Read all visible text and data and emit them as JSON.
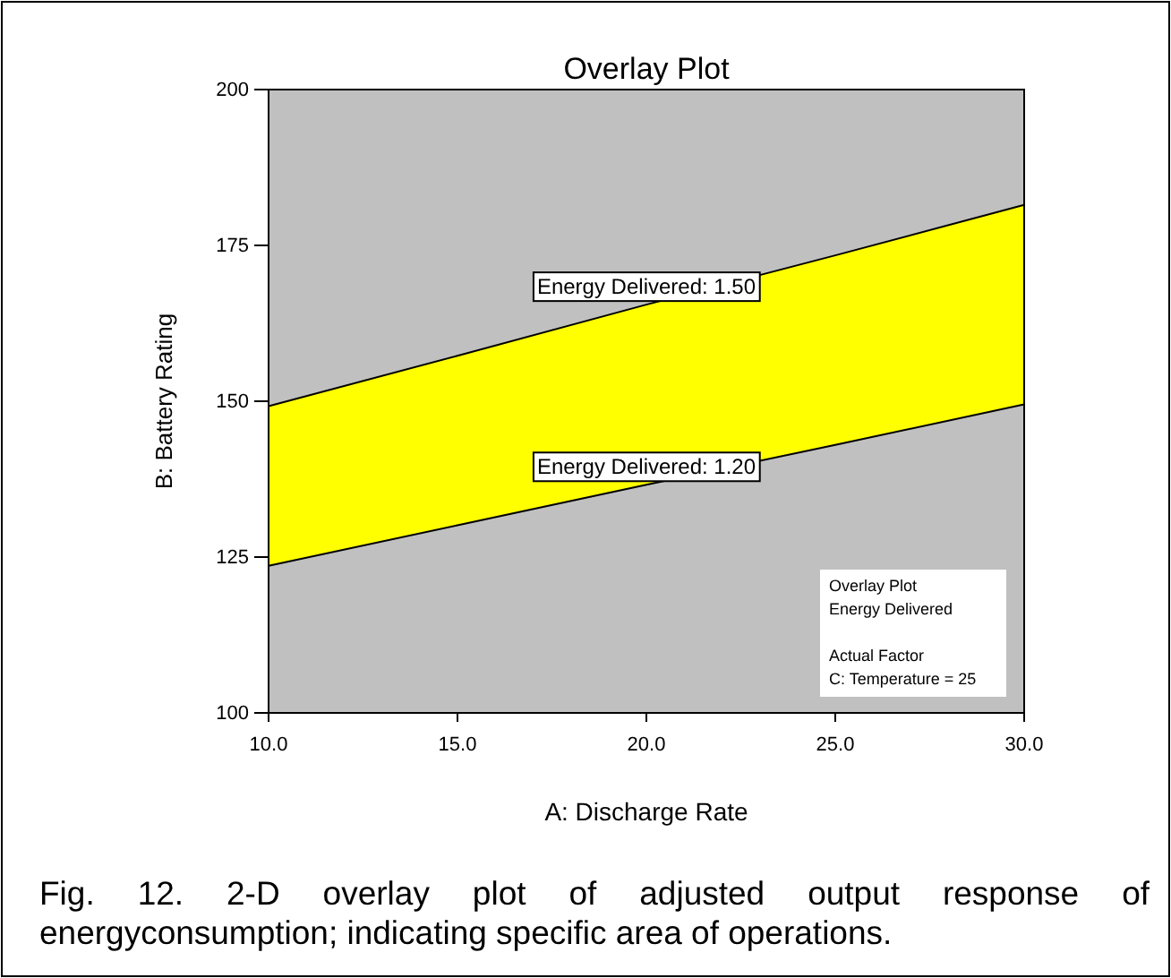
{
  "chart_data": {
    "type": "area",
    "title": "Overlay Plot",
    "xlabel": "A: Discharge Rate",
    "ylabel": "B: Battery Rating",
    "x": [
      10,
      15,
      20,
      25,
      30
    ],
    "series": [
      {
        "color": "#ffff00",
        "values": [
          149.2,
          157.3,
          165.5,
          173.4,
          181.5
        ]
      },
      {
        "color": "#c0c0c0",
        "values": [
          123.6,
          130.1,
          136.6,
          143.0,
          149.5
        ]
      }
    ],
    "xlim": [
      10,
      30
    ],
    "xticks": [
      {
        "value": 10,
        "label": "10.0"
      },
      {
        "value": 15,
        "label": "15.0"
      },
      {
        "value": 20,
        "label": "20.0"
      },
      {
        "value": 25,
        "label": "25.0"
      },
      {
        "value": 30,
        "label": "30.0"
      }
    ],
    "ylim": [
      100,
      200
    ],
    "yticks": [
      100,
      125,
      150,
      175,
      200
    ],
    "annotations": [
      {
        "text": "Energy Delivered: 1.50",
        "x": 20,
        "y": 165.5
      },
      {
        "text": "Energy Delivered: 1.20",
        "x": 20,
        "y": 136.6
      },
      "Overlay Plot\nEnergy Delivered\n\nActual Factor\nC: Temperature = 25",
      "Fig. 12. 2-D overlay plot of adjusted output response of energyconsumption; indicating specific area of operations."
    ]
  }
}
